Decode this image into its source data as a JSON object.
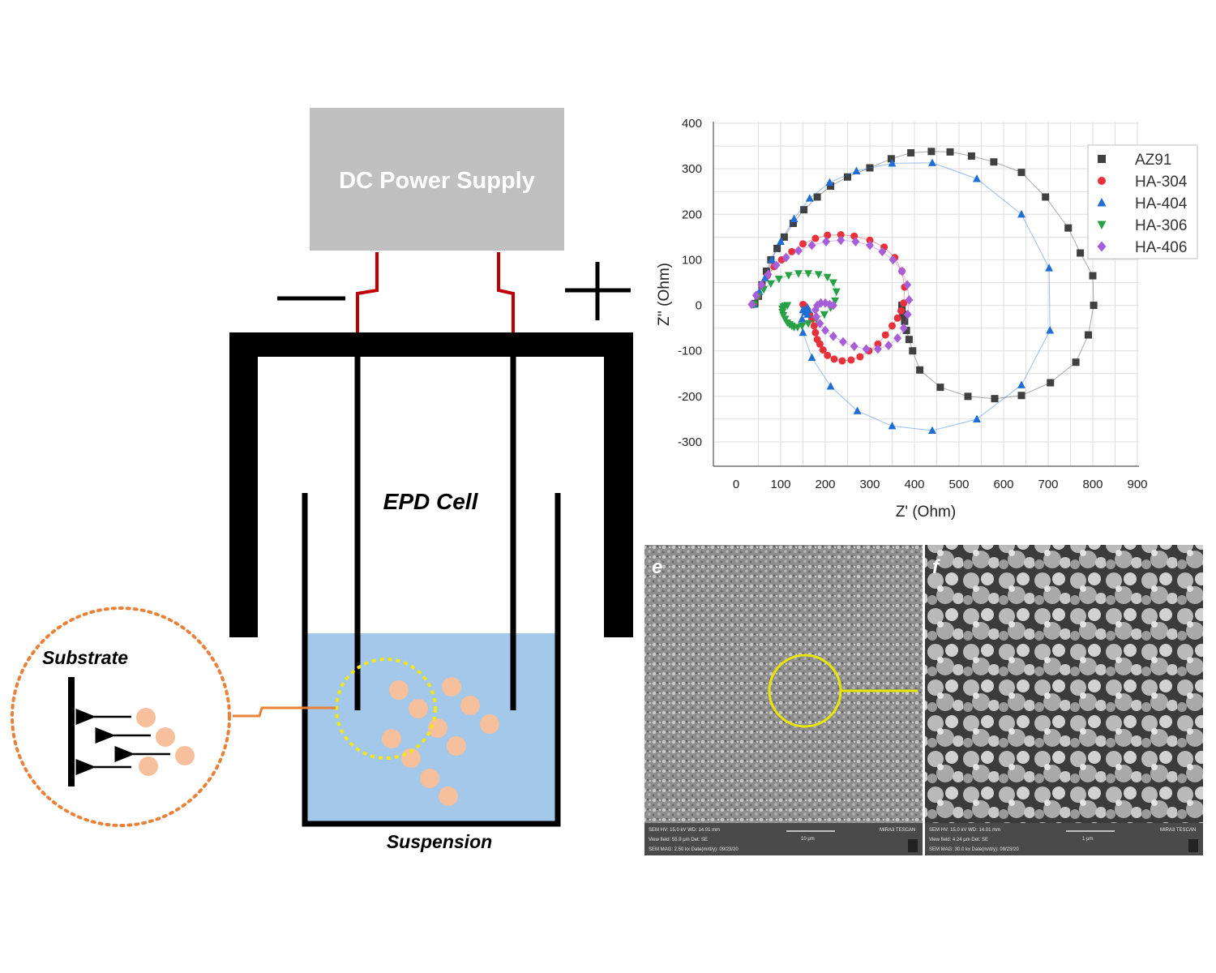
{
  "diagram": {
    "power_supply_label": "DC Power Supply",
    "cell_label": "EPD Cell",
    "suspension_label": "Suspension",
    "substrate_label": "Substrate",
    "colors": {
      "suspension": "#a4c8ea",
      "power_supply": "#c0c0c0",
      "wire": "#c00000",
      "particle": "#f6c09c",
      "zoom_circle": "#f0e619",
      "detail_circle": "#e8823a"
    }
  },
  "chart_data": {
    "type": "scatter",
    "xlabel": "Z' (Ohm)",
    "ylabel": "Z'' (Ohm)",
    "xlim": [
      0,
      900
    ],
    "ylim": [
      -300,
      400
    ],
    "x_ticks": [
      0,
      100,
      200,
      300,
      400,
      500,
      600,
      700,
      800,
      900
    ],
    "y_ticks": [
      -300,
      -200,
      -100,
      0,
      100,
      200,
      300,
      400
    ],
    "grid": true,
    "legend_position": "top-right",
    "series": [
      {
        "name": "AZ91",
        "color": "#404040",
        "marker": "square",
        "x": [
          42,
          50,
          58,
          68,
          78,
          92,
          108,
          128,
          152,
          182,
          212,
          250,
          300,
          348,
          392,
          438,
          480,
          528,
          578,
          640,
          694,
          745,
          772,
          800,
          802,
          790,
          762,
          705,
          640,
          580,
          520,
          458,
          412,
          396,
          388,
          382,
          378,
          374,
          372,
          372
        ],
        "y": [
          4,
          20,
          45,
          75,
          100,
          125,
          150,
          180,
          210,
          238,
          262,
          282,
          302,
          322,
          335,
          338,
          337,
          328,
          315,
          292,
          238,
          170,
          115,
          65,
          0,
          -65,
          -125,
          -170,
          -198,
          -205,
          -200,
          -180,
          -142,
          -100,
          -75,
          -55,
          -35,
          -20,
          -8,
          0
        ]
      },
      {
        "name": "HA-304",
        "color": "#e8313a",
        "marker": "circle",
        "x": [
          40,
          48,
          58,
          70,
          85,
          102,
          125,
          150,
          178,
          205,
          235,
          265,
          300,
          332,
          356,
          372,
          378,
          376,
          370,
          362,
          350,
          335,
          318,
          298,
          278,
          258,
          238,
          220,
          205,
          195,
          188,
          182,
          178,
          175,
          170,
          165,
          160,
          155,
          152,
          150
        ],
        "y": [
          2,
          20,
          42,
          65,
          85,
          100,
          118,
          135,
          147,
          154,
          155,
          152,
          143,
          128,
          105,
          75,
          40,
          5,
          -12,
          -28,
          -45,
          -65,
          -85,
          -100,
          -113,
          -120,
          -122,
          -118,
          -110,
          -98,
          -85,
          -75,
          -60,
          -45,
          -30,
          -20,
          -10,
          -5,
          0,
          2
        ]
      },
      {
        "name": "HA-404",
        "color": "#1f6ed4",
        "marker": "triangle-up",
        "x": [
          40,
          52,
          65,
          80,
          100,
          130,
          165,
          210,
          270,
          350,
          440,
          540,
          640,
          702,
          704,
          640,
          540,
          440,
          350,
          272,
          212,
          170,
          150,
          148,
          152,
          160,
          162,
          160,
          155,
          150
        ],
        "y": [
          2,
          30,
          60,
          100,
          140,
          190,
          235,
          270,
          295,
          312,
          313,
          278,
          200,
          82,
          -55,
          -175,
          -250,
          -275,
          -265,
          -232,
          -178,
          -115,
          -60,
          -30,
          -10,
          -5,
          -10,
          -20,
          -15,
          -10
        ]
      },
      {
        "name": "HA-306",
        "color": "#27a046",
        "marker": "triangle-down",
        "x": [
          40,
          50,
          62,
          78,
          96,
          118,
          140,
          162,
          185,
          205,
          218,
          225,
          222,
          212,
          198,
          180,
          162,
          148,
          138,
          130,
          125,
          120,
          115,
          110,
          106,
          104,
          104,
          106,
          110,
          115
        ],
        "y": [
          2,
          20,
          35,
          48,
          58,
          66,
          70,
          70,
          68,
          62,
          50,
          30,
          10,
          -5,
          -20,
          -30,
          -40,
          -45,
          -48,
          -48,
          -45,
          -42,
          -38,
          -30,
          -22,
          -15,
          -8,
          -3,
          -1,
          0
        ]
      },
      {
        "name": "HA-406",
        "color": "#a65fd8",
        "marker": "diamond",
        "x": [
          35,
          45,
          57,
          72,
          90,
          112,
          140,
          170,
          202,
          235,
          268,
          300,
          328,
          352,
          372,
          384,
          388,
          385,
          376,
          362,
          342,
          318,
          292,
          265,
          240,
          218,
          200,
          188,
          180,
          178,
          182,
          190,
          200,
          210,
          218
        ],
        "y": [
          2,
          22,
          45,
          68,
          88,
          105,
          120,
          132,
          140,
          143,
          140,
          132,
          118,
          100,
          75,
          45,
          12,
          -20,
          -50,
          -72,
          -88,
          -96,
          -96,
          -90,
          -80,
          -68,
          -55,
          -40,
          -25,
          -10,
          0,
          5,
          5,
          2,
          0
        ]
      }
    ]
  },
  "micrographs": {
    "left": {
      "panel_label": "e",
      "info_lines": [
        "SEM HV: 15.0 kV     WD: 14.01 mm",
        "View field: 55.9 μm     Det: SE",
        "SEM MAG: 2.50 kx     Date(m/d/y): 09/23/20"
      ],
      "scale_label": "10 μm",
      "instrument": "MIRA3 TESCAN"
    },
    "right": {
      "panel_label": "f",
      "info_lines": [
        "SEM HV: 15.0 kV     WD: 14.01 mm",
        "View field: 4.24 μm     Det: SE",
        "SEM MAG: 30.0 kx     Date(m/d/y): 09/23/20"
      ],
      "scale_label": "1 μm",
      "instrument": "MIRA3 TESCAN"
    }
  }
}
